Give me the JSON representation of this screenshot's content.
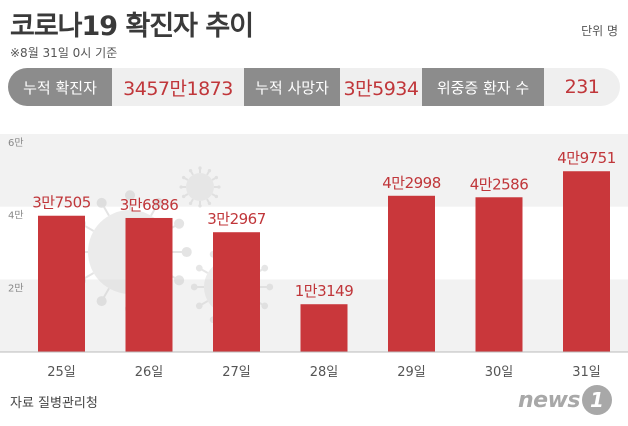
{
  "header": {
    "title": "코로나19 확진자 추이",
    "note": "※8월 31일 0시 기준",
    "unit": "단위 명"
  },
  "stats": [
    {
      "label": "누적 확진자",
      "value": "3457만1873"
    },
    {
      "label": "누적 사망자",
      "value": "3만5934"
    },
    {
      "label": "위중증 환자 수",
      "value": "231"
    }
  ],
  "chart_data": {
    "type": "bar",
    "categories": [
      "25일",
      "26일",
      "27일",
      "28일",
      "29일",
      "30일",
      "31일"
    ],
    "values": [
      37505,
      36886,
      32967,
      13149,
      42998,
      42586,
      49751
    ],
    "value_labels": [
      "3만7505",
      "3만6886",
      "3만2967",
      "1만3149",
      "4만2998",
      "4만2586",
      "4만9751"
    ],
    "yticks": [
      {
        "value": 20000,
        "label": "2만"
      },
      {
        "value": 40000,
        "label": "4만"
      },
      {
        "value": 60000,
        "label": "6만"
      }
    ],
    "ylim": [
      0,
      60000
    ],
    "grid": true,
    "bar_color": "#c9373b"
  },
  "footer": {
    "source": "자료 질병관리청",
    "logo_text": "news",
    "logo_mark": "1"
  }
}
